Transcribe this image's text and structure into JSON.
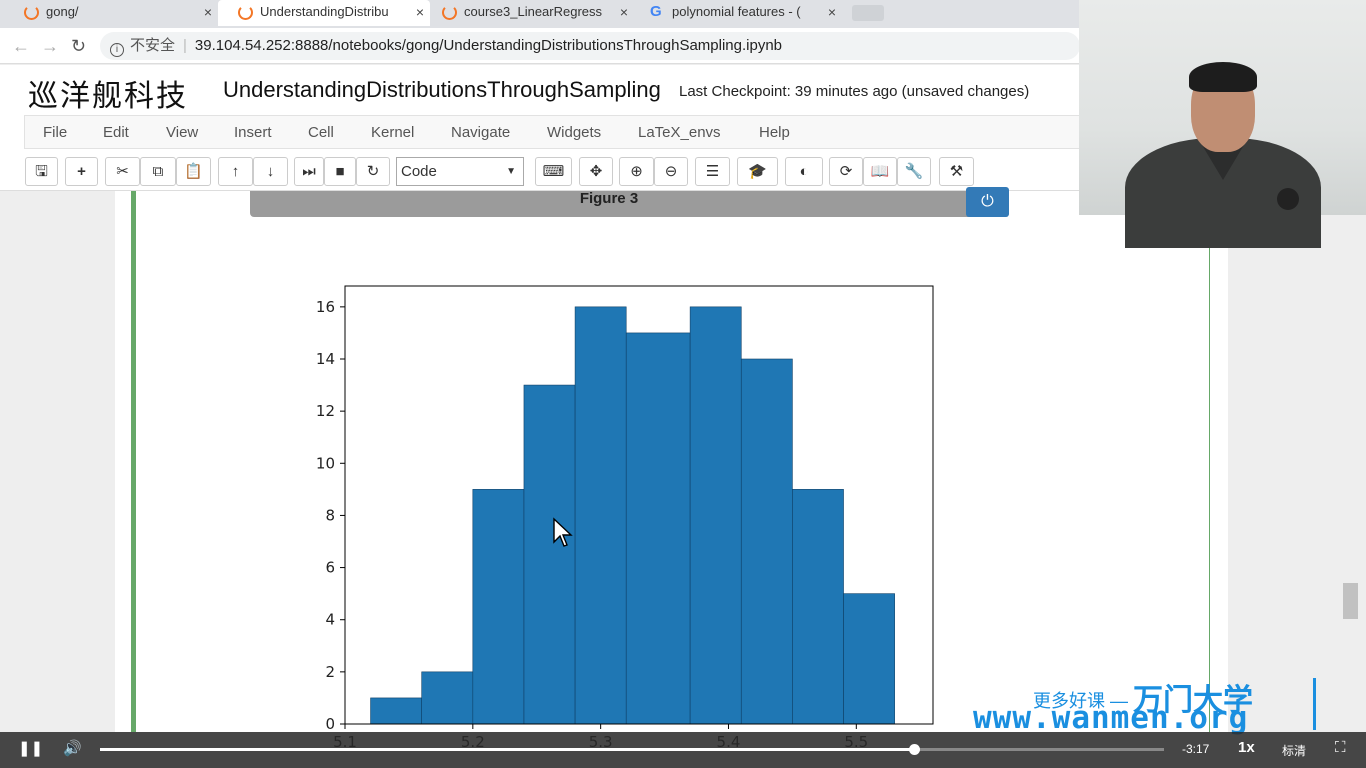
{
  "browser": {
    "tabs": [
      {
        "label": "gong/",
        "icon": "jupyter-icon",
        "close": "×"
      },
      {
        "label": "UnderstandingDistribu",
        "icon": "jupyter-icon",
        "close": "×"
      },
      {
        "label": "course3_LinearRegress",
        "icon": "jupyter-icon",
        "close": "×"
      },
      {
        "label": "polynomial features - (",
        "icon": "google-icon",
        "close": "×"
      }
    ],
    "security_label": "不安全",
    "url": "39.104.54.252:8888/notebooks/gong/UnderstandingDistributionsThroughSampling.ipynb"
  },
  "jupyter": {
    "logo_text": "巡洋舰科技",
    "notebook_title": "UnderstandingDistributionsThroughSampling",
    "checkpoint": "Last Checkpoint: 39 minutes ago (unsaved changes)",
    "menu": [
      "File",
      "Edit",
      "View",
      "Insert",
      "Cell",
      "Kernel",
      "Navigate",
      "Widgets",
      "LaTeX_envs",
      "Help"
    ],
    "cell_type": "Code"
  },
  "figure": {
    "title": "Figure 3"
  },
  "chart_data": {
    "type": "bar",
    "histogram": true,
    "bins": [
      {
        "start": 5.12,
        "end": 5.16,
        "count": 1
      },
      {
        "start": 5.16,
        "end": 5.2,
        "count": 2
      },
      {
        "start": 5.2,
        "end": 5.24,
        "count": 9
      },
      {
        "start": 5.24,
        "end": 5.28,
        "count": 13
      },
      {
        "start": 5.28,
        "end": 5.32,
        "count": 16
      },
      {
        "start": 5.32,
        "end": 5.37,
        "count": 15
      },
      {
        "start": 5.37,
        "end": 5.41,
        "count": 16
      },
      {
        "start": 5.41,
        "end": 5.45,
        "count": 14
      },
      {
        "start": 5.45,
        "end": 5.49,
        "count": 9
      },
      {
        "start": 5.49,
        "end": 5.53,
        "count": 5
      }
    ],
    "xlim": [
      5.1,
      5.56
    ],
    "ylim": [
      0,
      16.8
    ],
    "xticks": [
      5.1,
      5.2,
      5.3,
      5.4,
      5.5
    ],
    "xtick_labels": [
      "5.1",
      "5.2",
      "5.3",
      "5.4",
      "5.5"
    ],
    "yticks": [
      0,
      2,
      4,
      6,
      8,
      10,
      12,
      14,
      16
    ],
    "ytick_labels": [
      "0",
      "2",
      "4",
      "6",
      "8",
      "10",
      "12",
      "14",
      "16"
    ],
    "bar_color": "#1f77b4",
    "title": "",
    "xlabel": "",
    "ylabel": "",
    "grid": false
  },
  "watermark": {
    "line1_text": "更多好课 —",
    "line1_brand": "万门大学",
    "line2": "www.wanmen.org"
  },
  "video": {
    "time_remaining": "-3:17",
    "speed": "1x",
    "quality": "标清",
    "progress": 0.765
  }
}
